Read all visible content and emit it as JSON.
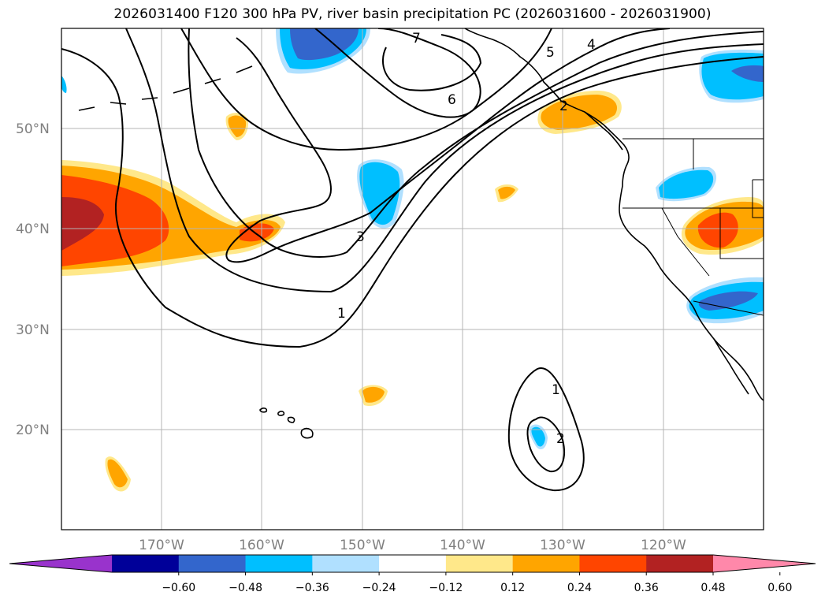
{
  "title": "2026031400 F120 300 hPa PV, river basin precipitation PC (2026031600 - 2026031900)",
  "lat_labels": [
    "50°N",
    "40°N",
    "30°N",
    "20°N"
  ],
  "lon_labels": [
    "170°W",
    "160°W",
    "150°W",
    "140°W",
    "130°W",
    "120°W"
  ],
  "contour_labels": [
    "7",
    "6",
    "5",
    "4",
    "2",
    "3",
    "1",
    "1",
    "2"
  ],
  "colorbar": {
    "ticks": [
      "−0.60",
      "−0.48",
      "−0.36",
      "−0.24",
      "−0.12",
      "0.12",
      "0.24",
      "0.36",
      "0.48",
      "0.60"
    ],
    "colors": [
      "#9933cc",
      "#000099",
      "#3366cc",
      "#00bfff",
      "#b0e0ff",
      "#ffffff",
      "#ffe88a",
      "#ffa500",
      "#ff4500",
      "#b22222",
      "#ff88aa"
    ]
  },
  "chart_data": {
    "type": "map",
    "title": "2026031400 F120 300 hPa PV, river basin precipitation PC (2026031600 - 2026031900)",
    "lon_range": [
      -180,
      -110
    ],
    "lat_range": [
      10,
      60
    ],
    "contour_levels_pv": [
      1,
      2,
      3,
      4,
      5,
      6,
      7
    ],
    "colorbar_levels": [
      -0.6,
      -0.48,
      -0.36,
      -0.24,
      -0.12,
      0.12,
      0.24,
      0.36,
      0.48,
      0.6
    ]
  }
}
